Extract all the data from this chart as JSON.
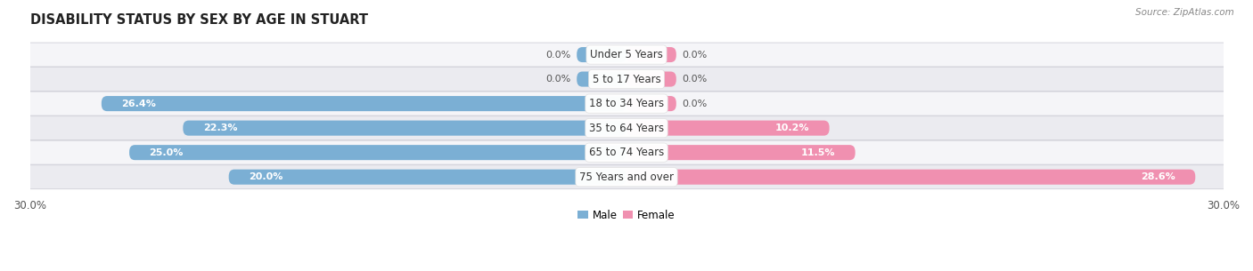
{
  "title": "DISABILITY STATUS BY SEX BY AGE IN STUART",
  "source": "Source: ZipAtlas.com",
  "categories": [
    "Under 5 Years",
    "5 to 17 Years",
    "18 to 34 Years",
    "35 to 64 Years",
    "65 to 74 Years",
    "75 Years and over"
  ],
  "male_values": [
    0.0,
    0.0,
    26.4,
    22.3,
    25.0,
    20.0
  ],
  "female_values": [
    0.0,
    0.0,
    0.0,
    10.2,
    11.5,
    28.6
  ],
  "male_color": "#7bafd4",
  "female_color": "#f090b0",
  "bar_bg_color": "#e8e8ee",
  "bar_height": 0.62,
  "xlim": 30.0,
  "title_fontsize": 10.5,
  "label_fontsize": 8.0,
  "category_fontsize": 8.5,
  "tick_fontsize": 8.5,
  "zero_stub": 2.5,
  "bg_row_color": "#f0f0f5"
}
